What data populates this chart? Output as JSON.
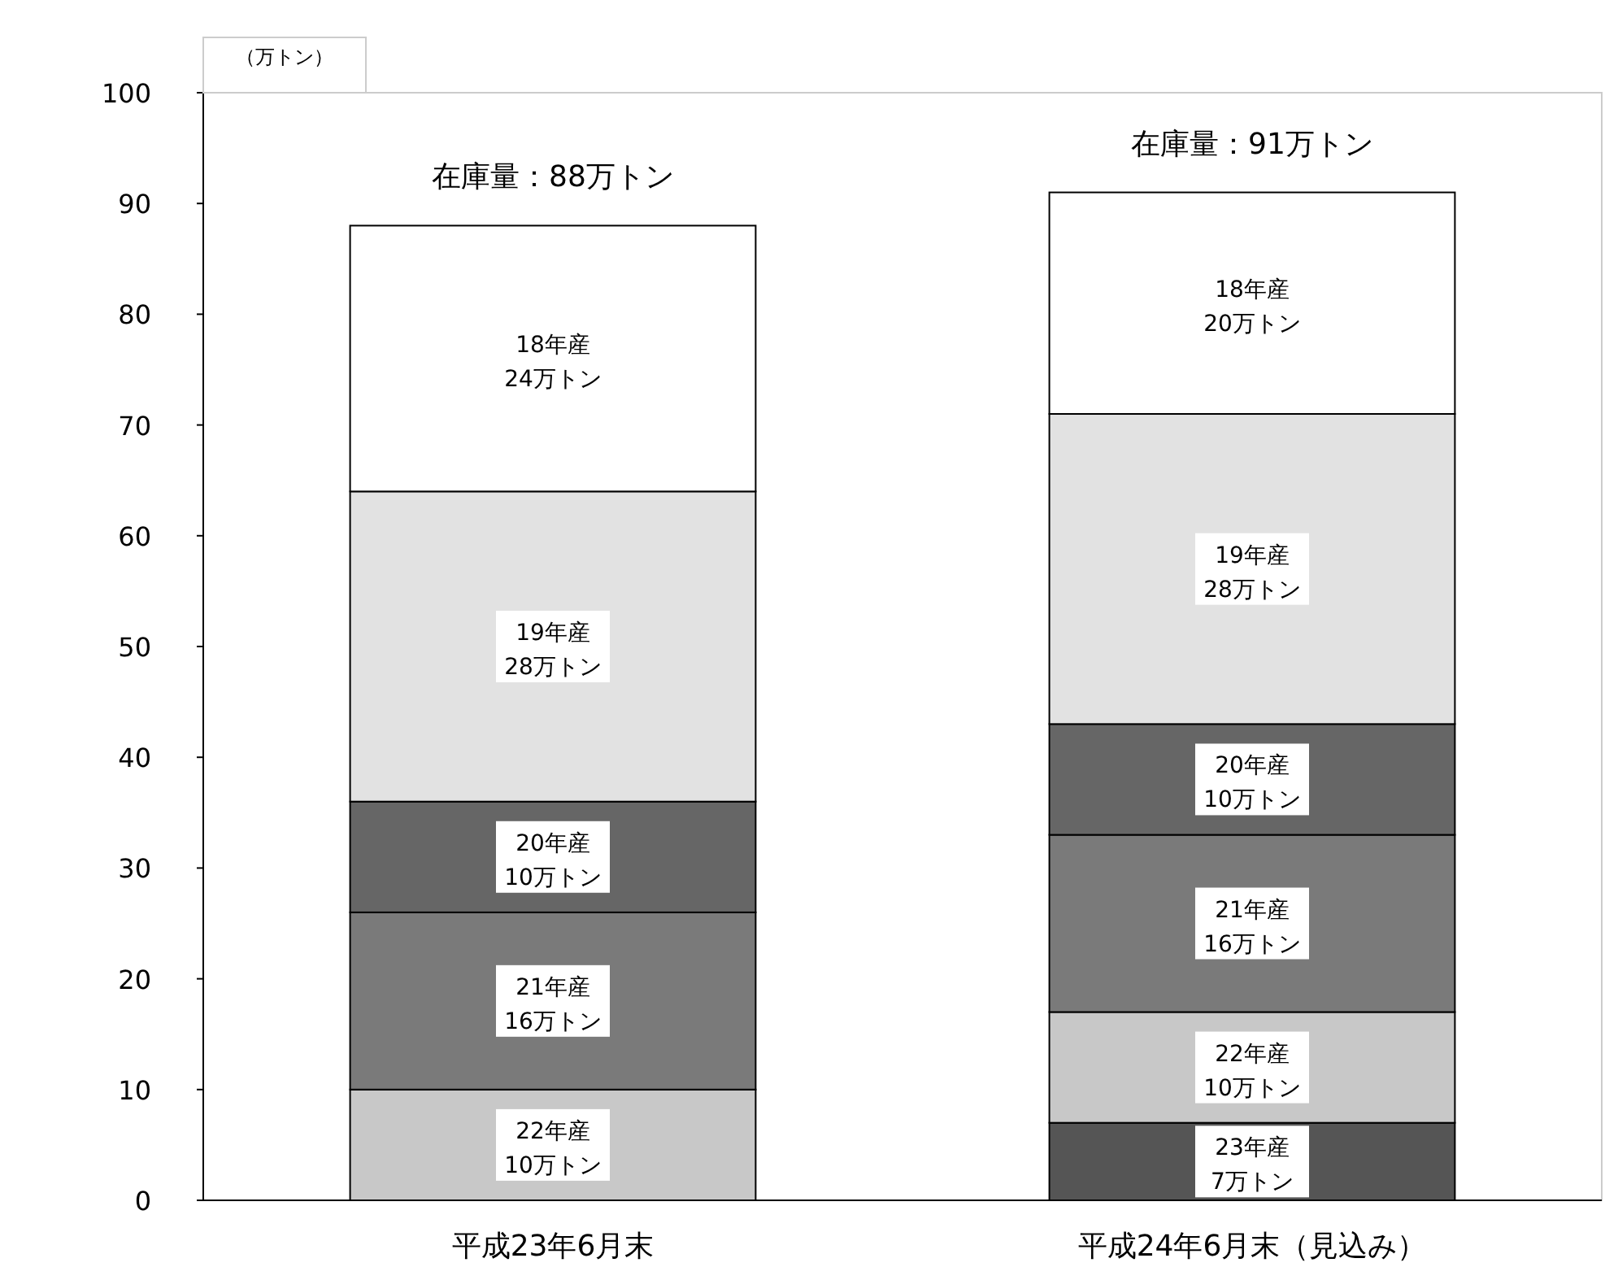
{
  "chart_data": {
    "type": "bar",
    "stacked": true,
    "ylabel": "（万トン）",
    "categories": [
      "平成23年6月末",
      "平成24年6月末（見込み）"
    ],
    "ylim": [
      0,
      100
    ],
    "yticks": [
      0,
      10,
      20,
      30,
      40,
      50,
      60,
      70,
      80,
      90,
      100
    ],
    "series": [
      {
        "name": "23年産",
        "color": "#555555",
        "values": [
          null,
          7
        ],
        "value_labels": [
          null,
          "7万トン"
        ]
      },
      {
        "name": "22年産",
        "color": "#c8c8c8",
        "values": [
          10,
          10
        ],
        "value_labels": [
          "10万トン",
          "10万トン"
        ]
      },
      {
        "name": "21年産",
        "color": "#7a7a7a",
        "values": [
          16,
          16
        ],
        "value_labels": [
          "16万トン",
          "16万トン"
        ]
      },
      {
        "name": "20年産",
        "color": "#666666",
        "values": [
          10,
          10
        ],
        "value_labels": [
          "10万トン",
          "10万トン"
        ]
      },
      {
        "name": "19年産",
        "color": "#e2e2e2",
        "values": [
          28,
          28
        ],
        "value_labels": [
          "28万トン",
          "28万トン"
        ]
      },
      {
        "name": "18年産",
        "color": "#ffffff",
        "values": [
          24,
          20
        ],
        "value_labels": [
          "24万トン",
          "20万トン"
        ]
      }
    ],
    "totals": [
      "在庫量：88万トン",
      "在庫量：91万トン"
    ]
  }
}
